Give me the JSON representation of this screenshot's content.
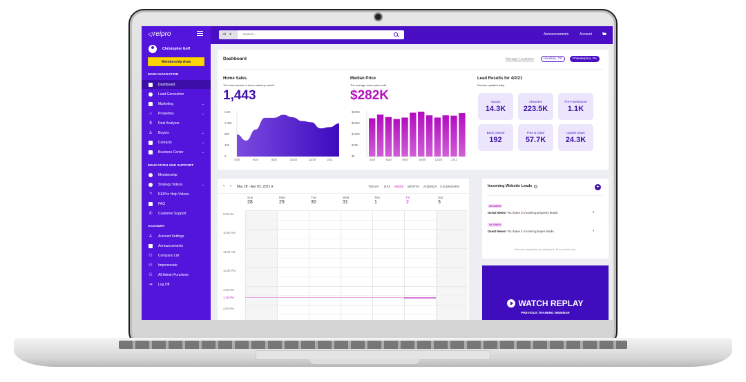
{
  "sidebar": {
    "brand": "reipro",
    "user_name": "Christopher Goff",
    "membership_button": "Membership Area",
    "sections": [
      {
        "heading": "MAIN NAVIGATION",
        "items": [
          {
            "label": "Dashboard",
            "icon": "dashboard-icon",
            "active": true,
            "chevron": false
          },
          {
            "label": "Lead Generation",
            "icon": "target-icon",
            "chevron": false
          },
          {
            "label": "Marketing",
            "icon": "marketing-icon",
            "chevron": true
          },
          {
            "label": "Properties",
            "icon": "house-icon",
            "chevron": true
          },
          {
            "label": "Deal Analyzer",
            "icon": "dollar-icon",
            "chevron": false
          },
          {
            "label": "Buyers",
            "icon": "user-icon",
            "chevron": true
          },
          {
            "label": "Contacts",
            "icon": "contacts-icon",
            "chevron": true
          },
          {
            "label": "Business Center",
            "icon": "briefcase-icon",
            "chevron": true
          }
        ]
      },
      {
        "heading": "EDUCATION AND SUPPORT",
        "items": [
          {
            "label": "Membership",
            "icon": "membership-icon",
            "chevron": false
          },
          {
            "label": "Strategy Videos",
            "icon": "play-circle-icon",
            "chevron": true
          },
          {
            "label": "REIPro Help Videos",
            "icon": "question-icon",
            "chevron": false
          },
          {
            "label": "FAQ",
            "icon": "chat-icon",
            "chevron": false
          },
          {
            "label": "Customer Support",
            "icon": "phone-icon",
            "chevron": false
          }
        ]
      },
      {
        "heading": "ACCOUNT",
        "items": [
          {
            "label": "Account Settings",
            "icon": "user-settings-icon",
            "chevron": false
          },
          {
            "label": "Announcements",
            "icon": "megaphone-icon",
            "chevron": false
          },
          {
            "label": "Company List",
            "icon": "group-icon",
            "chevron": false
          },
          {
            "label": "Impersonate",
            "icon": "group-icon",
            "chevron": false
          },
          {
            "label": "All Admin Functions",
            "icon": "group-icon",
            "chevron": false
          },
          {
            "label": "Log Off",
            "icon": "logout-icon",
            "chevron": false
          }
        ]
      }
    ]
  },
  "topbar": {
    "search_scope": "All",
    "search_placeholder": "Search...",
    "links": [
      "Announcements",
      "Account"
    ],
    "cart_icon": "cart-icon"
  },
  "dashboard": {
    "title": "Dashboard",
    "manage_locations": "Manage Locations",
    "locations": [
      "Houston, TX",
      "Philadelphia, PA"
    ],
    "home_sales": {
      "title": "Home Sales",
      "subtitle": "The total number of home sales by month.",
      "value": "1,443"
    },
    "median_price": {
      "title": "Median Price",
      "subtitle": "The average home price sold.",
      "value": "$282K"
    },
    "lead_results": {
      "title": "Lead Results for 4/2/21",
      "subtitle": "Number updated daily.",
      "boxes": [
        {
          "label": "Vacant",
          "value": "14.3K"
        },
        {
          "label": "Absentee",
          "value": "223.5K"
        },
        {
          "label": "Pre-Foreclosure",
          "value": "1.1K"
        },
        {
          "label": "Bank Owned",
          "value": "192"
        },
        {
          "label": "Free & Clear",
          "value": "57.7K"
        },
        {
          "label": "Upside Down",
          "value": "24.3K"
        }
      ]
    }
  },
  "chart_data": [
    {
      "type": "area",
      "title": "Home Sales",
      "x": [
        "4/20",
        "5/20",
        "6/20",
        "7/20",
        "8/20",
        "9/20",
        "10/20",
        "11/20",
        "12/20",
        "1/21",
        "2/21",
        "3/21"
      ],
      "values": [
        900,
        650,
        1100,
        1580,
        1580,
        1700,
        1600,
        1450,
        1400,
        1150,
        1200,
        1350
      ],
      "x_tick_labels": [
        "4/20",
        "6/20",
        "8/20",
        "10/20",
        "12/20",
        "2/21"
      ],
      "y_tick_labels": [
        "0",
        "450",
        "900",
        "1.35K",
        "1.8K"
      ],
      "ylim": [
        0,
        1800
      ],
      "color": "#5a1fd6"
    },
    {
      "type": "bar",
      "title": "Median Price",
      "categories": [
        "4/20",
        "5/20",
        "6/20",
        "7/20",
        "8/20",
        "9/20",
        "10/20",
        "11/20",
        "12/20",
        "1/21",
        "2/21",
        "3/21"
      ],
      "values": [
        260,
        285,
        268,
        255,
        265,
        298,
        305,
        280,
        265,
        280,
        278,
        295
      ],
      "x_tick_labels": [
        "4/20",
        "6/20",
        "8/20",
        "10/20",
        "12/20",
        "2/21"
      ],
      "y_tick_labels": [
        "$0",
        "$75K",
        "$150K",
        "$225K",
        "$300K"
      ],
      "ylim": [
        0,
        300
      ],
      "ylabel": "$K",
      "color": "#b40fbf"
    }
  ],
  "calendar": {
    "range": "Mar 28 - Apr 03, 2021",
    "views": [
      "TODAY",
      "DAY",
      "WEEK",
      "MONTH",
      "AGENDA",
      "CALENDARS"
    ],
    "active_view": "WEEK",
    "days": [
      {
        "dow": "Sun",
        "num": "28"
      },
      {
        "dow": "Mon",
        "num": "29"
      },
      {
        "dow": "Tue",
        "num": "30"
      },
      {
        "dow": "Wed",
        "num": "31"
      },
      {
        "dow": "Thu",
        "num": "1"
      },
      {
        "dow": "Fri",
        "num": "2",
        "today": true
      },
      {
        "dow": "Sat",
        "num": "3"
      }
    ],
    "times": [
      "9:00 AM",
      "10:00 AM",
      "11:00 AM",
      "12:00 PM",
      "1:00 PM",
      "2:00 PM"
    ],
    "now_time": "1:35 PM"
  },
  "leads": {
    "title": "Incoming Website Leads",
    "items": [
      {
        "badge": "INCOMING",
        "bold": "Great News!",
        "pre": " You have ",
        "count": "2",
        "post": " incoming property leads."
      },
      {
        "badge": "INCOMING",
        "bold": "Great News!",
        "pre": " You have ",
        "count": "1",
        "post": " incoming buyer leads."
      }
    ],
    "footer": "Add new integration by clicking the ⊕ icon at the top."
  },
  "replay": {
    "title": "WATCH REPLAY",
    "subtitle": "PREVIOUS TRAINING WEBINAR"
  }
}
